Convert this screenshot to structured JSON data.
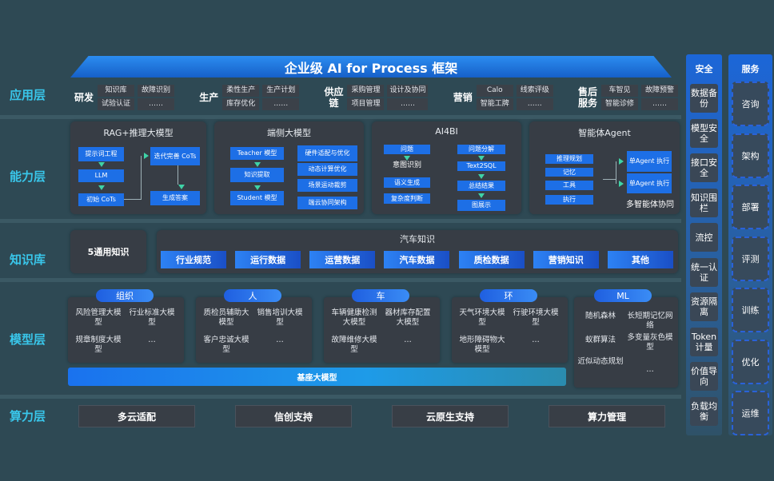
{
  "title": "企业级 AI for Process 框架",
  "layers": [
    "应用层",
    "能力层",
    "知识库",
    "模型层",
    "算力层"
  ],
  "app": {
    "groups": [
      {
        "label": "研发",
        "items": [
          "知识库",
          "故障识别",
          "试验认证",
          "……"
        ]
      },
      {
        "label": "生产",
        "items": [
          "柔性生产",
          "生产计划",
          "库存优化",
          "……"
        ]
      },
      {
        "label": "供应链",
        "items": [
          "采购管理",
          "设计及协同",
          "项目管理",
          "……"
        ]
      },
      {
        "label": "营销",
        "items": [
          "Calo",
          "线索评级",
          "智能工牌",
          "……"
        ]
      },
      {
        "label": "售后服务",
        "items": [
          "车智见",
          "故障预警",
          "智能诊修",
          "……"
        ]
      }
    ]
  },
  "capability": {
    "panels": [
      {
        "title": "RAG+推理大模型",
        "items": [
          "提示词工程",
          "LLM",
          "初始 CoTs",
          "迭代完善 CoTs",
          "生成答案"
        ]
      },
      {
        "title": "端侧大模型",
        "items": [
          "Teacher 模型",
          "知识提取",
          "Student 模型",
          "硬件适配与优化",
          "动态计算优化",
          "场景运动裁剪",
          "端云协同架构"
        ]
      },
      {
        "title": "AI4BI",
        "items": [
          "问题",
          "意图识别",
          "语义生成",
          "复杂度判断",
          "问题分解",
          "Text2SQL",
          "总结结果",
          "图展示"
        ]
      },
      {
        "title": "智能体Agent",
        "items": [
          "推理规划",
          "记忆",
          "工具",
          "执行",
          "单Agent 执行",
          "单Agent 执行",
          "多智能体协同"
        ]
      }
    ]
  },
  "knowledge": {
    "general": "5通用知识",
    "auto_title": "汽车知识",
    "items": [
      "行业规范",
      "运行数据",
      "运营数据",
      "汽车数据",
      "质检数据",
      "营销知识",
      "其他"
    ]
  },
  "models": {
    "groups": [
      {
        "label": "组织",
        "items": [
          "风险管理大模型",
          "行业标准大模型",
          "规章制度大模型",
          "…"
        ]
      },
      {
        "label": "人",
        "items": [
          "质检员辅助大模型",
          "销售培训大模型",
          "客户忠诚大模型",
          "…"
        ]
      },
      {
        "label": "车",
        "items": [
          "车辆健康检测大模型",
          "器材库存配置大模型",
          "故障维修大模型",
          "…"
        ]
      },
      {
        "label": "环",
        "items": [
          "天气环境大模型",
          "行驶环境大模型",
          "地形障碍物大模型",
          "…"
        ]
      },
      {
        "label": "ML",
        "items": [
          "随机森林",
          "长短期记忆网络",
          "蚁群算法",
          "多变量灰色模型",
          "近似动态规划",
          "…"
        ]
      }
    ],
    "base": "基座大模型"
  },
  "compute": {
    "items": [
      "多云适配",
      "信创支持",
      "云原生支持",
      "算力管理"
    ]
  },
  "security": {
    "title": "安全",
    "items": [
      "数据备份",
      "模型安全",
      "接口安全",
      "知识围栏",
      "流控",
      "统一认证",
      "资源隔离",
      "Token计量",
      "价值导向",
      "负载均衡"
    ]
  },
  "services": {
    "title": "服务",
    "items": [
      "咨询",
      "架构",
      "部署",
      "评测",
      "训练",
      "优化",
      "运维"
    ]
  },
  "colors": {
    "background": "#2e4954",
    "accent_blue": "#1d6fe6",
    "layer_label": "#39c6ea",
    "arrow": "#3fd3a6",
    "panel": "#373d45"
  }
}
